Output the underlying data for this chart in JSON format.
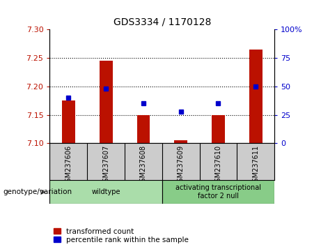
{
  "title": "GDS3334 / 1170128",
  "categories": [
    "GSM237606",
    "GSM237607",
    "GSM237608",
    "GSM237609",
    "GSM237610",
    "GSM237611"
  ],
  "red_values": [
    7.175,
    7.245,
    7.15,
    7.105,
    7.15,
    7.265
  ],
  "blue_values": [
    40,
    48,
    35,
    28,
    35,
    50
  ],
  "ylim_left": [
    7.1,
    7.3
  ],
  "ylim_right": [
    0,
    100
  ],
  "yticks_left": [
    7.1,
    7.15,
    7.2,
    7.25,
    7.3
  ],
  "yticks_right": [
    0,
    25,
    50,
    75,
    100
  ],
  "ytick_labels_right": [
    "0",
    "25",
    "50",
    "75",
    "100%"
  ],
  "hlines": [
    7.15,
    7.2,
    7.25
  ],
  "bar_color": "#bb1100",
  "dot_color": "#0000cc",
  "bar_bottom": 7.1,
  "groups": [
    {
      "label": "wildtype",
      "start": 0,
      "end": 3,
      "color": "#aaddaa"
    },
    {
      "label": "activating transcriptional\nfactor 2 null",
      "start": 3,
      "end": 6,
      "color": "#88cc88"
    }
  ],
  "legend_items": [
    {
      "label": "transformed count",
      "color": "#bb1100"
    },
    {
      "label": "percentile rank within the sample",
      "color": "#0000cc"
    }
  ],
  "genotype_label": "genotype/variation",
  "tick_area_color": "#cccccc",
  "bar_width": 0.35
}
